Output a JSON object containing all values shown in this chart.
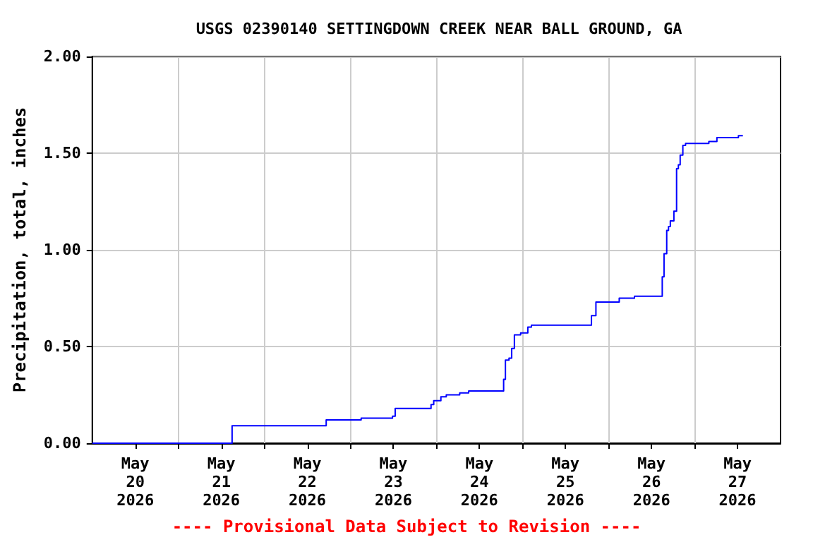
{
  "chart_data": {
    "type": "step",
    "title": "USGS 02390140 SETTINGDOWN CREEK NEAR BALL GROUND, GA",
    "ylabel": "Precipitation, total, inches",
    "annotations": [
      "---- Provisional Data Subject to Revision ----"
    ],
    "x": [
      "2026-05-20T00:00",
      "2026-05-21T15:00",
      "2026-05-22T17:15",
      "2026-05-23T03:00",
      "2026-05-23T11:45",
      "2026-05-23T12:30",
      "2026-05-23T22:30",
      "2026-05-23T23:15",
      "2026-05-24T01:15",
      "2026-05-24T02:45",
      "2026-05-24T06:30",
      "2026-05-24T09:00",
      "2026-05-24T18:45",
      "2026-05-24T19:15",
      "2026-05-24T20:15",
      "2026-05-24T21:00",
      "2026-05-24T21:45",
      "2026-05-24T23:30",
      "2026-05-25T01:30",
      "2026-05-25T02:30",
      "2026-05-25T19:15",
      "2026-05-25T20:30",
      "2026-05-26T03:00",
      "2026-05-26T07:15",
      "2026-05-26T15:00",
      "2026-05-26T15:30",
      "2026-05-26T16:15",
      "2026-05-26T16:45",
      "2026-05-26T17:15",
      "2026-05-26T18:15",
      "2026-05-26T19:00",
      "2026-05-26T19:30",
      "2026-05-26T20:00",
      "2026-05-26T20:45",
      "2026-05-26T21:30",
      "2026-05-27T04:00",
      "2026-05-27T06:15",
      "2026-05-27T12:15",
      "2026-05-27T13:30"
    ],
    "series": [
      {
        "color": "#0000ff",
        "values": [
          0,
          0.09,
          0.12,
          0.13,
          0.14,
          0.18,
          0.2,
          0.22,
          0.24,
          0.25,
          0.26,
          0.27,
          0.33,
          0.43,
          0.44,
          0.49,
          0.56,
          0.57,
          0.6,
          0.61,
          0.66,
          0.73,
          0.75,
          0.76,
          0.86,
          0.98,
          1.1,
          1.12,
          1.15,
          1.2,
          1.42,
          1.44,
          1.49,
          1.54,
          1.55,
          1.56,
          1.58,
          1.59,
          1.59
        ]
      }
    ],
    "xlim": [
      "2026-05-20T00:00",
      "2026-05-28T00:00"
    ],
    "xticks": [
      {
        "value": "2026-05-20T12:00",
        "label": "May\n20\n2026"
      },
      {
        "value": "2026-05-21T00:00",
        "label": null
      },
      {
        "value": "2026-05-21T12:00",
        "label": "May\n21\n2026"
      },
      {
        "value": "2026-05-22T00:00",
        "label": null
      },
      {
        "value": "2026-05-22T12:00",
        "label": "May\n22\n2026"
      },
      {
        "value": "2026-05-23T00:00",
        "label": null
      },
      {
        "value": "2026-05-23T12:00",
        "label": "May\n23\n2026"
      },
      {
        "value": "2026-05-24T00:00",
        "label": null
      },
      {
        "value": "2026-05-24T12:00",
        "label": "May\n24\n2026"
      },
      {
        "value": "2026-05-25T00:00",
        "label": null
      },
      {
        "value": "2026-05-25T12:00",
        "label": "May\n25\n2026"
      },
      {
        "value": "2026-05-26T00:00",
        "label": null
      },
      {
        "value": "2026-05-26T12:00",
        "label": "May\n26\n2026"
      },
      {
        "value": "2026-05-27T00:00",
        "label": null
      },
      {
        "value": "2026-05-27T12:00",
        "label": "May\n27\n2026"
      }
    ],
    "ylim": [
      0,
      2
    ],
    "yticks": [
      {
        "value": 0,
        "label": "0.00"
      },
      {
        "value": 0.5,
        "label": "0.50"
      },
      {
        "value": 1,
        "label": "1.00"
      },
      {
        "value": 1.5,
        "label": "1.50"
      },
      {
        "value": 2,
        "label": "2.00"
      }
    ],
    "grid": true,
    "marker": "none",
    "line_style": "solid"
  }
}
